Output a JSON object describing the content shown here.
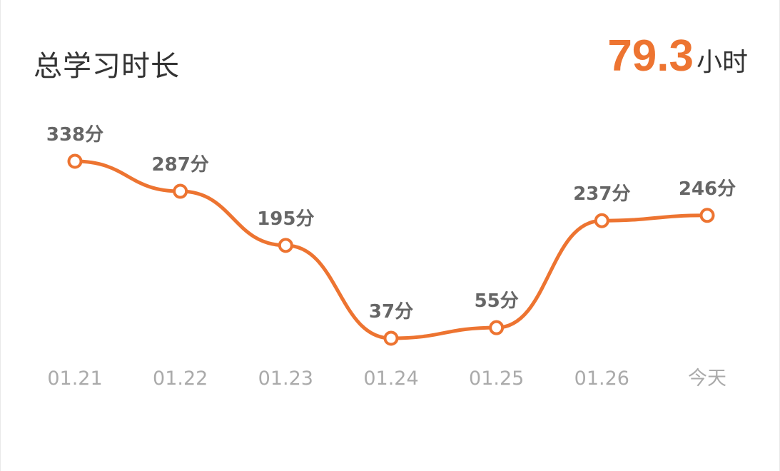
{
  "header": {
    "title": "总学习时长",
    "total_value": "79.3",
    "total_unit": "小时"
  },
  "colors": {
    "accent": "#ED7431",
    "title_text": "#333333",
    "value_label": "#666666",
    "tick_label": "#aaaaaa"
  },
  "chart_data": {
    "type": "line",
    "categories": [
      "01.21",
      "01.22",
      "01.23",
      "01.24",
      "01.25",
      "01.26",
      "今天"
    ],
    "series": [
      {
        "values": [
          338,
          287,
          195,
          37,
          55,
          237,
          246
        ],
        "labels": [
          "338分",
          "287分",
          "195分",
          "37分",
          "55分",
          "237分",
          "246分"
        ]
      }
    ],
    "curve": "smooth",
    "markers": "hollow-circle",
    "grid": false,
    "legend": "none"
  }
}
